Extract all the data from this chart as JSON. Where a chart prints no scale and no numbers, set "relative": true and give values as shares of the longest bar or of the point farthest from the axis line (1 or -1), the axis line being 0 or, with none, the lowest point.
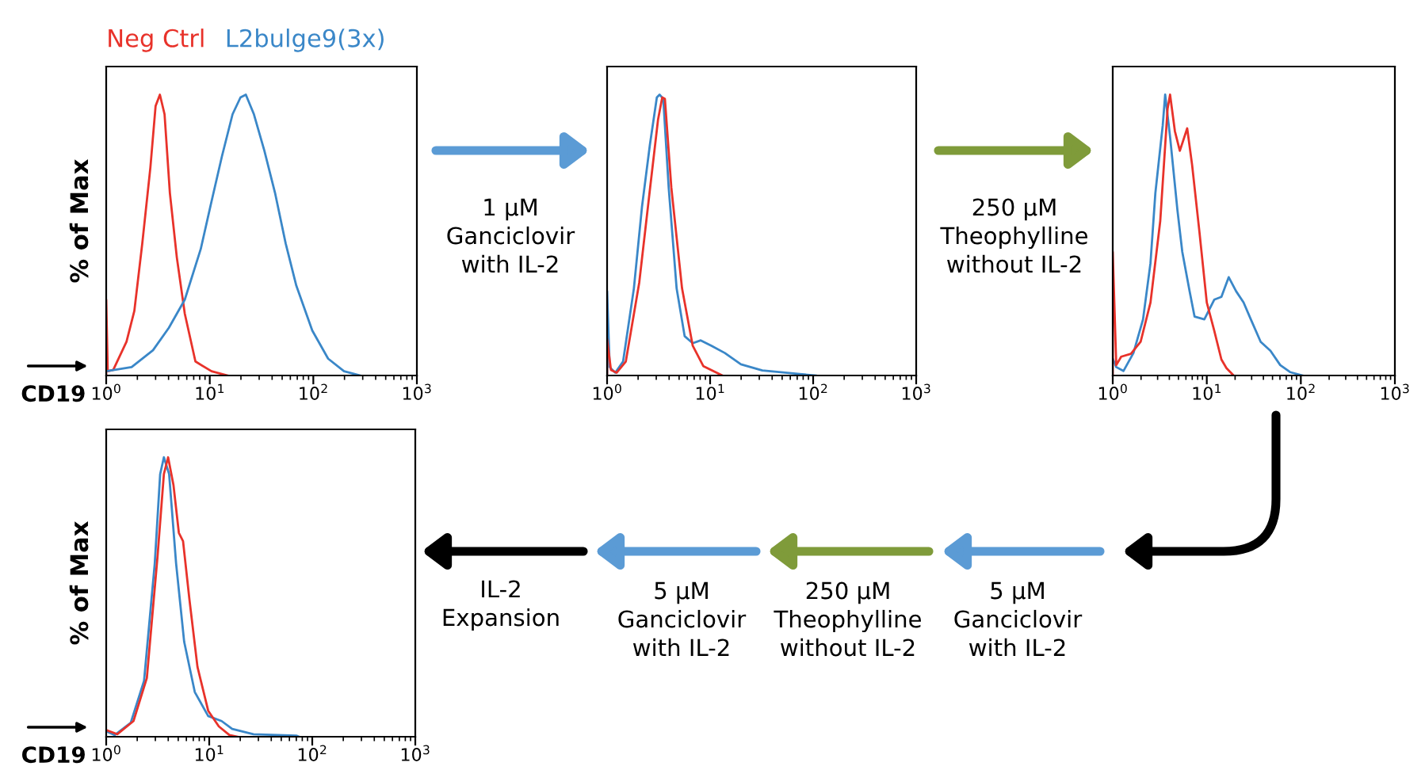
{
  "chart_data": [
    {
      "type": "line",
      "relative": true,
      "ylabel": "% of Max",
      "xlabel": "CD19",
      "log": "x",
      "xlim": [
        1,
        1000
      ],
      "legend": "top",
      "marker": "none",
      "line_style": "solid",
      "grid": false,
      "xticks": [
        {
          "value": 1,
          "label": "10$^{0}$"
        },
        {
          "value": 10,
          "label": "10$^{1}$"
        },
        {
          "value": 100,
          "label": "10$^{2}$"
        },
        {
          "value": 1000,
          "label": "10$^{3}$"
        }
      ],
      "series": [
        {
          "name": "Neg Ctrl",
          "color": "#e8322a",
          "x": [
            1.0,
            1.0,
            1.035,
            1.17,
            1.57,
            1.87,
            2.23,
            2.67,
            3.0,
            3.3,
            3.66,
            4.12,
            4.81,
            5.74,
            7.27,
            10.4,
            14.8
          ],
          "values": [
            0,
            0.27,
            0.015,
            0.02,
            0.12,
            0.23,
            0.47,
            0.74,
            0.96,
            1.0,
            0.93,
            0.65,
            0.42,
            0.22,
            0.05,
            0.015,
            0
          ]
        },
        {
          "name": "L2bulge9(3x)",
          "color": "#3a87c8",
          "x": [
            1.0,
            1.76,
            2.83,
            4.03,
            5.74,
            8.18,
            10.4,
            13.1,
            16.6,
            19.8,
            22.3,
            26.7,
            33.7,
            42.7,
            54.1,
            68.5,
            97.7,
            139,
            198,
            283
          ],
          "values": [
            0.015,
            0.03,
            0.09,
            0.17,
            0.27,
            0.45,
            0.62,
            0.78,
            0.93,
            0.99,
            1.0,
            0.93,
            0.8,
            0.65,
            0.47,
            0.32,
            0.16,
            0.06,
            0.015,
            0
          ]
        }
      ],
      "annotations": [
        "1 µM\nGanciclovir\nwith IL-2"
      ]
    },
    {
      "type": "line",
      "relative": true,
      "log": "x",
      "xlim": [
        1,
        1000
      ],
      "marker": "none",
      "line_style": "solid",
      "grid": false,
      "xticks": [
        {
          "value": 1,
          "label": "10$^{0}$"
        },
        {
          "value": 10,
          "label": "10$^{1}$"
        },
        {
          "value": 100,
          "label": "10$^{2}$"
        },
        {
          "value": 1000,
          "label": "10$^{3}$"
        }
      ],
      "series": [
        {
          "color": "#3a87c8",
          "x": [
            1.0,
            1.0,
            1.06,
            1.2,
            1.43,
            1.82,
            2.18,
            2.6,
            3.04,
            3.23,
            3.51,
            3.96,
            4.73,
            5.66,
            6.78,
            8.11,
            10.3,
            13.9,
            19.9,
            32.1,
            74.1,
            106
          ],
          "values": [
            0,
            0.3,
            0.03,
            0.01,
            0.05,
            0.31,
            0.6,
            0.82,
            0.99,
            1.0,
            0.985,
            0.67,
            0.31,
            0.14,
            0.115,
            0.125,
            0.106,
            0.08,
            0.04,
            0.018,
            0.005,
            0
          ]
        },
        {
          "color": "#e8322a",
          "x": [
            1.0,
            1.0,
            1.09,
            1.24,
            1.52,
            2.05,
            2.6,
            3.12,
            3.43,
            3.64,
            4.2,
            5.34,
            6.78,
            8.61,
            13.1
          ],
          "values": [
            0,
            0.13,
            0.02,
            0.01,
            0.05,
            0.33,
            0.66,
            0.91,
            0.99,
            0.985,
            0.67,
            0.31,
            0.106,
            0.033,
            0
          ]
        }
      ],
      "annotations": [
        "250 µM\nTheophylline\nwithout IL-2"
      ]
    },
    {
      "type": "line",
      "relative": true,
      "log": "x",
      "xlim": [
        1,
        1000
      ],
      "marker": "none",
      "line_style": "solid",
      "grid": false,
      "xticks": [
        {
          "value": 1,
          "label": "10$^{0}$"
        },
        {
          "value": 10,
          "label": "10$^{1}$"
        },
        {
          "value": 100,
          "label": "10$^{2}$"
        },
        {
          "value": 1000,
          "label": "10$^{3}$"
        }
      ],
      "series": [
        {
          "color": "#3a87c8",
          "x": [
            1.0,
            1.09,
            1.3,
            1.66,
            2.1,
            2.52,
            2.84,
            3.4,
            3.61,
            4.07,
            4.87,
            5.49,
            6.57,
            7.41,
            9.42,
            12.0,
            14.3,
            17.1,
            20.5,
            24.6,
            29.4,
            37.4,
            47.5,
            60.4,
            76.8,
            104
          ],
          "values": [
            0.06,
            0.03,
            0.016,
            0.08,
            0.2,
            0.4,
            0.65,
            0.89,
            1.0,
            0.85,
            0.59,
            0.44,
            0.3,
            0.21,
            0.2,
            0.27,
            0.28,
            0.35,
            0.3,
            0.26,
            0.2,
            0.12,
            0.088,
            0.037,
            0.012,
            0
          ]
        },
        {
          "color": "#e8322a",
          "x": [
            1.0,
            1.0,
            1.09,
            1.23,
            1.56,
            1.98,
            2.52,
            3.2,
            3.83,
            4.07,
            4.58,
            5.17,
            6.19,
            6.98,
            8.36,
            10.0,
            12.0,
            14.3,
            16.2,
            19.3
          ],
          "values": [
            0,
            0.44,
            0.037,
            0.067,
            0.077,
            0.12,
            0.26,
            0.55,
            0.95,
            1.0,
            0.87,
            0.8,
            0.88,
            0.75,
            0.51,
            0.26,
            0.16,
            0.057,
            0.026,
            0
          ]
        }
      ],
      "annotations": [
        "5 µM\nGanciclovir\nwith IL-2",
        "250 µM\nTheophylline\nwithout IL-2",
        "5 µM\nGanciclovir\nwith IL-2",
        "IL-2\nExpansion"
      ]
    },
    {
      "type": "line",
      "relative": true,
      "ylabel": "% of Max",
      "xlabel": "CD19",
      "log": "x",
      "xlim": [
        1,
        1000
      ],
      "marker": "none",
      "line_style": "solid",
      "grid": false,
      "xticks": [
        {
          "value": 1,
          "label": "10$^{0}$"
        },
        {
          "value": 10,
          "label": "10$^{1}$"
        },
        {
          "value": 100,
          "label": "10$^{2}$"
        },
        {
          "value": 1000,
          "label": "10$^{3}$"
        }
      ],
      "series": [
        {
          "color": "#3a87c8",
          "x": [
            1.0,
            1.21,
            1.73,
            2.33,
            2.96,
            3.34,
            3.63,
            4.08,
            4.77,
            5.71,
            7.24,
            9.77,
            13.2,
            16.7,
            26.9,
            70.0,
            74.2
          ],
          "values": [
            0.02,
            0.006,
            0.05,
            0.2,
            0.62,
            0.94,
            1.0,
            0.94,
            0.62,
            0.34,
            0.16,
            0.074,
            0.056,
            0.028,
            0.009,
            0.004,
            0
          ]
        },
        {
          "color": "#e8322a",
          "x": [
            1.0,
            1.28,
            1.84,
            2.48,
            3.14,
            3.63,
            3.99,
            4.5,
            5.07,
            5.57,
            6.43,
            7.69,
            9.77,
            12.4,
            15.7,
            18.8
          ],
          "values": [
            0.024,
            0.009,
            0.056,
            0.21,
            0.64,
            0.94,
            1.0,
            0.9,
            0.73,
            0.7,
            0.49,
            0.25,
            0.093,
            0.037,
            0.006,
            0
          ]
        }
      ]
    }
  ]
}
